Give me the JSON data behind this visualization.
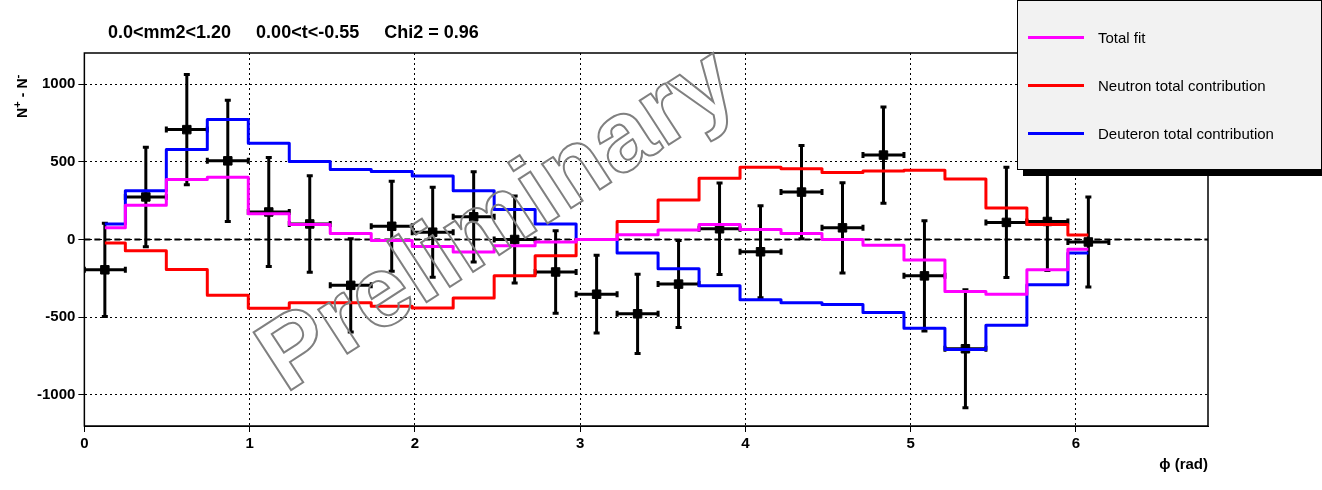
{
  "chart_data": {
    "type": "step",
    "title": "0.0<mm2<1.20     0.00<t<-0.55     Chi2 = 0.96",
    "xlabel": "ϕ (rad)",
    "ylabel": "N$^{+}$ - N$^{-}$",
    "annotations": [
      "Preliminary"
    ],
    "x": [
      0.124,
      0.372,
      0.62,
      0.868,
      1.116,
      1.364,
      1.612,
      1.86,
      2.108,
      2.356,
      2.604,
      2.852,
      3.1,
      3.348,
      3.596,
      3.844,
      4.092,
      4.34,
      4.588,
      4.836,
      5.084,
      5.332,
      5.58,
      5.828,
      6.076
    ],
    "xlim": [
      0,
      6.8
    ],
    "xticks": [
      0,
      1,
      2,
      3,
      4,
      5,
      6
    ],
    "ylim": [
      -1200,
      1200
    ],
    "yticks": [
      -1000,
      -500,
      0,
      500,
      1000
    ],
    "grid": true,
    "legend": "top right",
    "ref_lines": [
      {
        "axis": "y",
        "value": 0,
        "color": "#000000",
        "line_style": "dashed"
      }
    ],
    "series": [
      {
        "name": "Total fit",
        "color": "#ff00ff",
        "values": [
          75,
          221,
          386,
          400,
          166,
          96,
          39,
          -6,
          -45,
          -81,
          -41,
          -16,
          0,
          30,
          61,
          96,
          65,
          39,
          0,
          -37,
          -132,
          -335,
          -352,
          -195,
          -63
        ]
      },
      {
        "name": "Neutron total contribution",
        "color": "#ff0000",
        "values": [
          -23,
          -73,
          -193,
          -358,
          -443,
          -407,
          -407,
          -429,
          -440,
          -376,
          -234,
          -104,
          0,
          116,
          254,
          394,
          465,
          455,
          431,
          441,
          445,
          390,
          203,
          96,
          29
        ]
      },
      {
        "name": "Deuteron total contribution",
        "color": "#0000ff",
        "values": [
          100,
          313,
          579,
          772,
          620,
          502,
          451,
          437,
          408,
          313,
          193,
          100,
          0,
          -87,
          -189,
          -297,
          -388,
          -407,
          -419,
          -470,
          -571,
          -707,
          -551,
          -291,
          -87
        ]
      },
      {
        "type": "scatter",
        "color": "#000000",
        "marker": "square",
        "values": [
          -195,
          274,
          707,
          506,
          177,
          100,
          -295,
          85,
          47,
          146,
          0,
          -209,
          -352,
          -478,
          -287,
          69,
          -79,
          305,
          75,
          543,
          -234,
          -703,
          110,
          116,
          -16
        ],
        "errors": [
          300,
          320,
          355,
          390,
          350,
          310,
          300,
          290,
          290,
          290,
          280,
          265,
          250,
          255,
          280,
          295,
          296,
          300,
          290,
          310,
          354,
          380,
          355,
          315,
          290
        ],
        "xerrors": [
          0.124,
          0.124,
          0.124,
          0.124,
          0.124,
          0.124,
          0.124,
          0.124,
          0.124,
          0.124,
          0.124,
          0.124,
          0.124,
          0.124,
          0.124,
          0.124,
          0.124,
          0.124,
          0.124,
          0.124,
          0.124,
          0.124,
          0.124,
          0.124,
          0.124
        ]
      }
    ]
  }
}
